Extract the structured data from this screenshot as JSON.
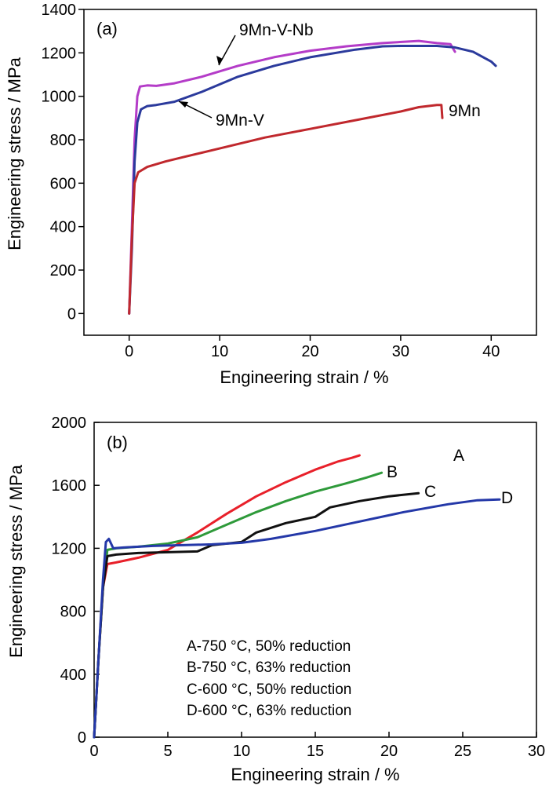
{
  "chart_data": [
    {
      "type": "line",
      "panel_label": "(a)",
      "xlabel": "Engineering strain / %",
      "ylabel": "Engineering stress / MPa",
      "xlim": [
        -5,
        45
      ],
      "ylim": [
        -100,
        1400
      ],
      "xticks": [
        "0",
        "10",
        "20",
        "30",
        "40"
      ],
      "xtick_values": [
        0,
        10,
        20,
        30,
        40
      ],
      "yticks": [
        "0",
        "200",
        "400",
        "600",
        "800",
        "1000",
        "1200",
        "1400"
      ],
      "ytick_values": [
        0,
        200,
        400,
        600,
        800,
        1000,
        1200,
        1400
      ],
      "series": [
        {
          "name": "9Mn-V-Nb",
          "color": "#b43cc8",
          "x": [
            0,
            0.3,
            0.6,
            0.9,
            1.2,
            2,
            3,
            5,
            8,
            12,
            16,
            20,
            24,
            28,
            32,
            34,
            35.5,
            36
          ],
          "y": [
            0,
            400,
            800,
            1000,
            1045,
            1050,
            1048,
            1060,
            1090,
            1140,
            1180,
            1210,
            1230,
            1245,
            1255,
            1245,
            1240,
            1205
          ]
        },
        {
          "name": "9Mn-V",
          "color": "#2b3a9c",
          "x": [
            0,
            0.3,
            0.6,
            0.9,
            1.3,
            2,
            3,
            5,
            8,
            12,
            16,
            20,
            25,
            28,
            30,
            34,
            36,
            38,
            40,
            40.5
          ],
          "y": [
            0,
            300,
            700,
            880,
            940,
            955,
            960,
            975,
            1020,
            1090,
            1140,
            1180,
            1215,
            1230,
            1232,
            1232,
            1225,
            1205,
            1160,
            1140
          ]
        },
        {
          "name": "9Mn",
          "color": "#c0282d",
          "x": [
            0,
            0.3,
            0.6,
            1,
            2,
            4,
            6,
            10,
            15,
            20,
            25,
            30,
            32,
            34,
            34.5,
            34.6
          ],
          "y": [
            0,
            350,
            600,
            650,
            675,
            700,
            720,
            760,
            810,
            850,
            890,
            930,
            950,
            960,
            960,
            900
          ]
        }
      ],
      "annotations": [
        {
          "text": "9Mn-V-Nb",
          "points_to": "9Mn-V-Nb"
        },
        {
          "text": "9Mn-V",
          "points_to": "9Mn-V"
        },
        {
          "text": "9Mn",
          "points_to": "9Mn"
        }
      ]
    },
    {
      "type": "line",
      "panel_label": "(b)",
      "xlabel": "Engineering strain / %",
      "ylabel": "Engineering stress / MPa",
      "xlim": [
        0,
        30
      ],
      "ylim": [
        0,
        2000
      ],
      "xticks": [
        "0",
        "5",
        "10",
        "15",
        "20",
        "25",
        "30"
      ],
      "xtick_values": [
        0,
        5,
        10,
        15,
        20,
        25,
        30
      ],
      "yticks": [
        "0",
        "400",
        "800",
        "1200",
        "1600",
        "2000"
      ],
      "ytick_values": [
        0,
        400,
        800,
        1200,
        1600,
        2000
      ],
      "series": [
        {
          "name": "A",
          "color": "#e8202a",
          "x": [
            0,
            0.3,
            0.6,
            0.9,
            1.5,
            3,
            5,
            7,
            9,
            11,
            13,
            15,
            16.5,
            17.5,
            18
          ],
          "y": [
            0,
            500,
            950,
            1100,
            1110,
            1140,
            1190,
            1300,
            1420,
            1530,
            1620,
            1700,
            1750,
            1775,
            1790
          ]
        },
        {
          "name": "B",
          "color": "#2e9a3a",
          "x": [
            0,
            0.3,
            0.6,
            0.9,
            1.5,
            3,
            5,
            7,
            9,
            11,
            13,
            15,
            17,
            18.5,
            19.5
          ],
          "y": [
            0,
            500,
            950,
            1190,
            1200,
            1210,
            1230,
            1270,
            1350,
            1430,
            1500,
            1560,
            1610,
            1650,
            1680
          ]
        },
        {
          "name": "C",
          "color": "#111111",
          "x": [
            0,
            0.3,
            0.6,
            0.9,
            1.5,
            3,
            5,
            7,
            8,
            10,
            11,
            13,
            15,
            16,
            18,
            20,
            22
          ],
          "y": [
            0,
            500,
            950,
            1150,
            1160,
            1170,
            1175,
            1180,
            1220,
            1240,
            1300,
            1360,
            1400,
            1460,
            1500,
            1530,
            1550
          ]
        },
        {
          "name": "D",
          "color": "#2438a8",
          "x": [
            0,
            0.3,
            0.6,
            0.8,
            1,
            1.3,
            2,
            4,
            6,
            8,
            10,
            12,
            15,
            18,
            21,
            24,
            26,
            27.5
          ],
          "y": [
            0,
            500,
            1000,
            1240,
            1260,
            1200,
            1205,
            1215,
            1220,
            1225,
            1235,
            1260,
            1310,
            1370,
            1430,
            1480,
            1505,
            1510
          ]
        }
      ],
      "legend": [
        "A-750 °C, 50% reduction",
        "B-750 °C, 63% reduction",
        "C-600 °C, 50% reduction",
        "D-600 °C, 63% reduction"
      ]
    }
  ]
}
